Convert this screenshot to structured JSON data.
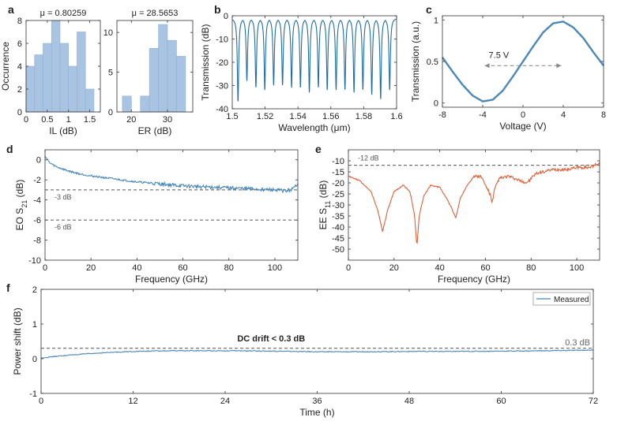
{
  "colors": {
    "blue": "#4b88b8",
    "darkblue": "#1f6ea6",
    "hist": "#a9c4e2",
    "orange": "#e0603a",
    "dash": "#555555"
  },
  "chart_data": [
    {
      "id": "a1",
      "panel_label": "a",
      "type": "bar",
      "title": "μ = 0.80259",
      "xlabel": "IL (dB)",
      "ylabel": "Occurrence",
      "xlim": [
        0,
        1.75
      ],
      "ylim": [
        0,
        8
      ],
      "xticks": [
        0,
        0.5,
        1,
        1.5
      ],
      "xtick_labels": [
        "0",
        "0.5",
        "1",
        "1.5"
      ],
      "yticks": [
        0,
        2,
        4,
        6,
        8
      ],
      "ytick_labels": [
        "0",
        "2",
        "4",
        "6",
        "8"
      ],
      "bin_edges": [
        0,
        0.2,
        0.4,
        0.6,
        0.8,
        1.0,
        1.2,
        1.4,
        1.6
      ],
      "values": [
        4,
        5,
        6,
        8,
        6,
        4,
        7,
        2
      ]
    },
    {
      "id": "a2",
      "type": "bar",
      "title": "μ = 28.5653",
      "xlabel": "ER (dB)",
      "ylabel": "",
      "xlim": [
        16,
        37
      ],
      "ylim": [
        0,
        11.5
      ],
      "xticks": [
        20,
        30
      ],
      "xtick_labels": [
        "20",
        "30"
      ],
      "yticks": [
        0,
        5,
        10
      ],
      "ytick_labels": [
        "0",
        "5",
        "10"
      ],
      "bin_edges": [
        17.5,
        20,
        22.5,
        25,
        27.5,
        30,
        32.5,
        35
      ],
      "values": [
        2,
        0,
        2,
        8,
        11,
        9,
        7
      ]
    },
    {
      "id": "b",
      "panel_label": "b",
      "type": "line",
      "xlabel": "Wavelength (μm)",
      "ylabel": "Transmission (dB)",
      "xlim": [
        1.5,
        1.6
      ],
      "ylim": [
        -40,
        0
      ],
      "xticks": [
        1.5,
        1.52,
        1.54,
        1.56,
        1.58,
        1.6
      ],
      "xtick_labels": [
        "1.5",
        "1.52",
        "1.54",
        "1.56",
        "1.58",
        "1.6"
      ],
      "yticks": [
        0,
        -10,
        -20,
        -30,
        -40
      ],
      "ytick_labels": [
        "0",
        "-10",
        "-20",
        "-30",
        "-40"
      ],
      "series": [
        {
          "resonance_dips_um": [
            1.5035,
            1.5089,
            1.5144,
            1.5198,
            1.5252,
            1.5306,
            1.5361,
            1.5415,
            1.5469,
            1.5524,
            1.5578,
            1.5632,
            1.5686,
            1.5741,
            1.5795,
            1.5849,
            1.5903,
            1.5958
          ],
          "dip_depths_db": [
            -36,
            -27,
            -30,
            -31,
            -29,
            -29,
            -30,
            -30,
            -32,
            -30,
            -31,
            -31,
            -31,
            -32,
            -31,
            -33,
            -35,
            -31
          ],
          "baseline_db": -1,
          "color": "#1f6ea6"
        }
      ]
    },
    {
      "id": "c",
      "panel_label": "c",
      "type": "line",
      "xlabel": "Voltage (V)",
      "ylabel": "Transmission (a.u.)",
      "xlim": [
        -8,
        8
      ],
      "ylim": [
        -0.05,
        1.05
      ],
      "xticks": [
        -8,
        -4,
        0,
        4,
        8
      ],
      "xtick_labels": [
        "-8",
        "-4",
        "0",
        "4",
        "8"
      ],
      "yticks": [
        0,
        0.5,
        1
      ],
      "ytick_labels": [
        "0",
        "0.5",
        "1"
      ],
      "series": [
        {
          "x": [
            -8,
            -7,
            -6,
            -5,
            -4,
            -3,
            -2,
            -1,
            0,
            1,
            2,
            3,
            4,
            5,
            6,
            7,
            8
          ],
          "y": [
            0.55,
            0.38,
            0.22,
            0.09,
            0.02,
            0.04,
            0.15,
            0.32,
            0.5,
            0.68,
            0.85,
            0.96,
            0.98,
            0.91,
            0.78,
            0.61,
            0.45
          ],
          "color": "#4b88b8"
        }
      ],
      "annotation": {
        "text": "7.5 V",
        "x_from": -3.8,
        "x_to": 3.8,
        "y": 0.45
      }
    },
    {
      "id": "d",
      "panel_label": "d",
      "type": "line",
      "xlabel": "Frequency (GHz)",
      "ylabel": "EO S21 (dB)",
      "ylabel_parts": {
        "main": "EO S",
        "sub": "21",
        "unit": " (dB)"
      },
      "xlim": [
        0,
        110
      ],
      "ylim": [
        -10,
        1
      ],
      "xticks": [
        0,
        20,
        40,
        60,
        80,
        100
      ],
      "xtick_labels": [
        "0",
        "20",
        "40",
        "60",
        "80",
        "100"
      ],
      "yticks": [
        0,
        -2,
        -4,
        -6,
        -8,
        -10
      ],
      "ytick_labels": [
        "0",
        "-2",
        "-4",
        "-6",
        "-8",
        "-10"
      ],
      "series": [
        {
          "x": [
            0,
            2,
            5,
            10,
            15,
            20,
            30,
            40,
            50,
            60,
            70,
            80,
            90,
            100,
            105,
            108,
            110
          ],
          "y": [
            0.4,
            -0.3,
            -0.7,
            -1.1,
            -1.4,
            -1.6,
            -1.9,
            -2.2,
            -2.4,
            -2.6,
            -2.7,
            -2.8,
            -2.9,
            -3.0,
            -3.1,
            -2.9,
            -2.3
          ],
          "color": "#4b88b8"
        }
      ],
      "reference_lines": [
        {
          "y": -3,
          "label": "-3 dB"
        },
        {
          "y": -6,
          "label": "-6 dB"
        }
      ]
    },
    {
      "id": "e",
      "panel_label": "e",
      "type": "line",
      "xlabel": "Frequency (GHz)",
      "ylabel": "EE S11 (dB)",
      "ylabel_parts": {
        "main": "EE S",
        "sub": "11",
        "unit": " (dB)"
      },
      "xlim": [
        0,
        110
      ],
      "ylim": [
        -55,
        -5
      ],
      "xticks": [
        0,
        20,
        40,
        60,
        80,
        100
      ],
      "xtick_labels": [
        "0",
        "20",
        "40",
        "60",
        "80",
        "100"
      ],
      "yticks": [
        -10,
        -15,
        -20,
        -25,
        -30,
        -35,
        -40,
        -45,
        -50
      ],
      "ytick_labels": [
        "-10",
        "-15",
        "-20",
        "-25",
        "-30",
        "-35",
        "-40",
        "-45",
        "-50"
      ],
      "series": [
        {
          "x": [
            0,
            5,
            10,
            13,
            15,
            17,
            20,
            24,
            27,
            29,
            30,
            31,
            33,
            36,
            40,
            43,
            45,
            47,
            49,
            52,
            55,
            58,
            60,
            62,
            63,
            64,
            66,
            70,
            75,
            78,
            80,
            82,
            85,
            90,
            95,
            100,
            105,
            108,
            110
          ],
          "y": [
            -17,
            -19,
            -24,
            -33,
            -42,
            -33,
            -24,
            -21,
            -24,
            -35,
            -49,
            -35,
            -26,
            -21,
            -22,
            -27,
            -31,
            -36,
            -27,
            -21,
            -17,
            -17,
            -21,
            -25,
            -29,
            -23,
            -18,
            -17,
            -19,
            -20,
            -18,
            -16,
            -15,
            -14,
            -14,
            -13,
            -13,
            -12,
            -11
          ],
          "color": "#e0603a"
        }
      ],
      "reference_lines": [
        {
          "y": -12,
          "label": "-12 dB"
        }
      ]
    },
    {
      "id": "f",
      "panel_label": "f",
      "type": "line",
      "xlabel": "Time (h)",
      "ylabel": "Power shift (dB)",
      "xlim": [
        0,
        72
      ],
      "ylim": [
        -1,
        2
      ],
      "xticks": [
        0,
        12,
        24,
        36,
        48,
        60,
        72
      ],
      "xtick_labels": [
        "0",
        "12",
        "24",
        "36",
        "48",
        "60",
        "72"
      ],
      "yticks": [
        2,
        1,
        0,
        -1
      ],
      "ytick_labels": [
        "2",
        "1",
        "0",
        "-1"
      ],
      "series": [
        {
          "name": "Measured",
          "x": [
            0,
            2,
            4,
            6,
            8,
            10,
            12,
            14,
            18,
            24,
            30,
            36,
            42,
            48,
            54,
            60,
            66,
            72
          ],
          "y": [
            0.02,
            0.07,
            0.11,
            0.14,
            0.17,
            0.19,
            0.21,
            0.22,
            0.23,
            0.23,
            0.22,
            0.2,
            0.2,
            0.21,
            0.21,
            0.22,
            0.23,
            0.25
          ],
          "color": "#4b88b8"
        }
      ],
      "reference_lines": [
        {
          "y": 0.3,
          "label": "0.3 dB"
        }
      ],
      "annotation": "DC drift < 0.3 dB",
      "legend": "top-right"
    }
  ]
}
